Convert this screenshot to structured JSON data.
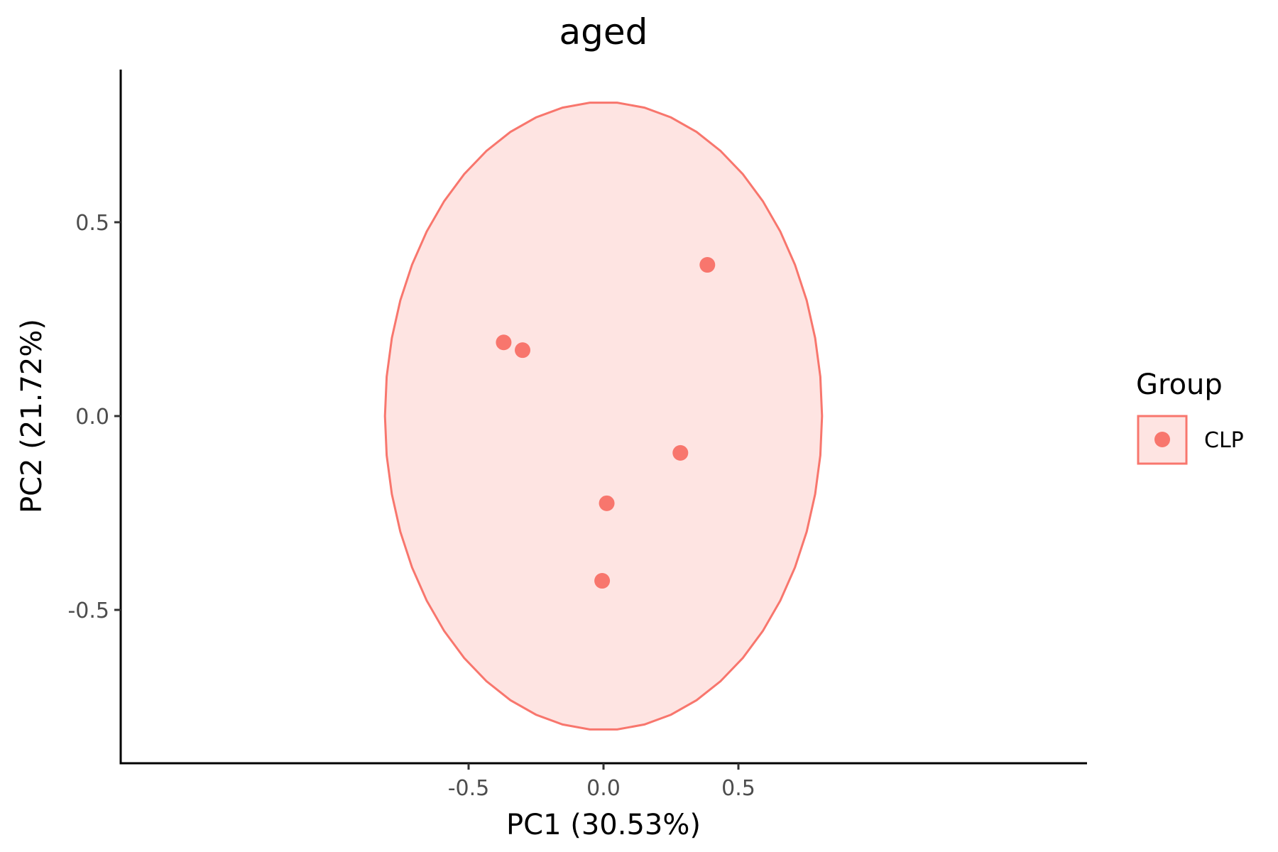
{
  "chart_data": {
    "type": "scatter",
    "title": "aged",
    "xlabel": "PC1 (30.53%)",
    "ylabel": "PC2 (21.72%)",
    "xlim": [
      -0.87,
      0.9
    ],
    "ylim": [
      -0.9,
      0.9
    ],
    "x_ticks": [
      -0.5,
      0.0,
      0.5
    ],
    "x_tick_labels": [
      "-0.5",
      "0.0",
      "0.5"
    ],
    "y_ticks": [
      -0.5,
      0.0,
      0.5
    ],
    "y_tick_labels": [
      "-0.5",
      "0.0",
      "0.5"
    ],
    "grid": false,
    "legend": {
      "title": "Group",
      "position": "right",
      "entries": [
        "CLP"
      ]
    },
    "series": [
      {
        "name": "CLP",
        "color": "#F8766D",
        "fill": "#F8766D",
        "points": [
          {
            "x": -0.37,
            "y": 0.19
          },
          {
            "x": -0.3,
            "y": 0.17
          },
          {
            "x": 0.385,
            "y": 0.39
          },
          {
            "x": 0.285,
            "y": -0.095
          },
          {
            "x": 0.012,
            "y": -0.225
          },
          {
            "x": -0.005,
            "y": -0.425
          }
        ],
        "ellipse": {
          "cx": 0.0,
          "cy": 0.0,
          "rx": 0.81,
          "ry": 0.81
        }
      }
    ]
  }
}
